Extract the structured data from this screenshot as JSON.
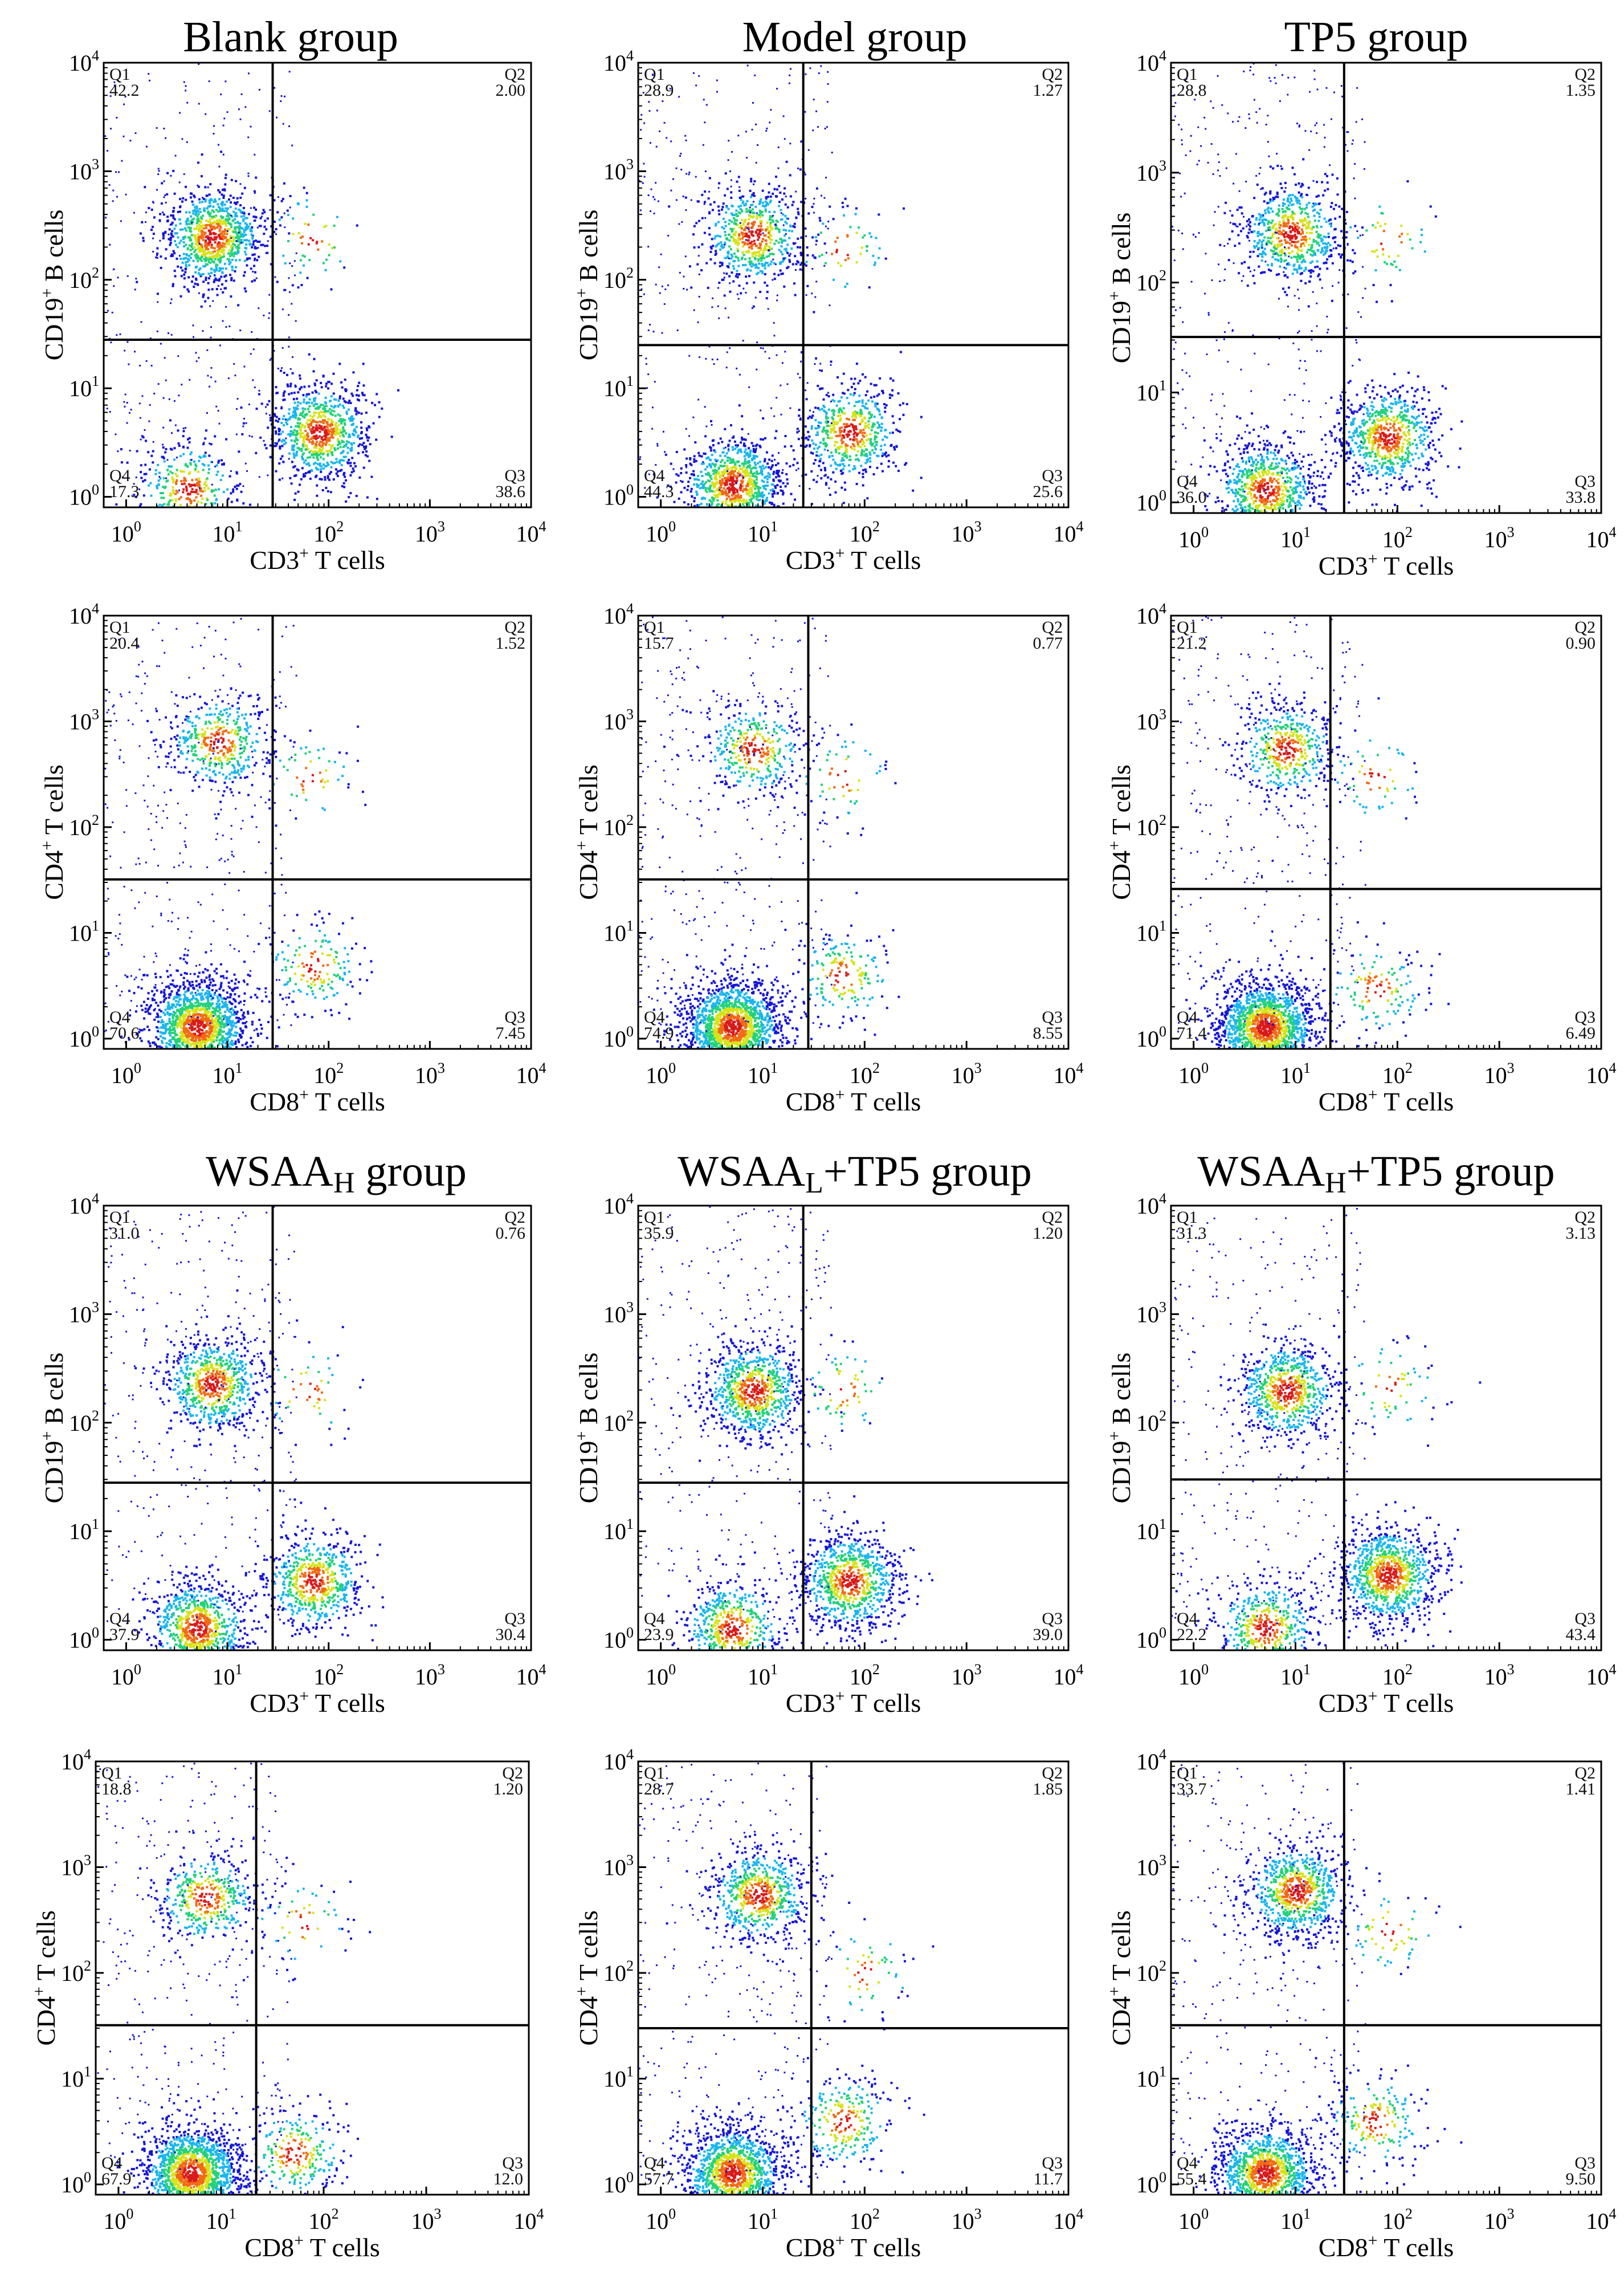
{
  "figure": {
    "titles": [
      {
        "name": "Blank",
        "suffix": " group",
        "sub": ""
      },
      {
        "name": "Model",
        "suffix": " group",
        "sub": ""
      },
      {
        "name": "TP5",
        "suffix": " group",
        "sub": ""
      },
      {
        "name": "WSAA",
        "sub": "H",
        "suffix": "  group"
      },
      {
        "name": "WSAA",
        "sub": "L",
        "suffix": "+TP5 group"
      },
      {
        "name": "WSAA",
        "sub": "H",
        "suffix": "+TP5 group"
      }
    ]
  },
  "axes": {
    "ticks": [
      {
        "base": "10",
        "exp": "0"
      },
      {
        "base": "10",
        "exp": "1"
      },
      {
        "base": "10",
        "exp": "2"
      },
      {
        "base": "10",
        "exp": "3"
      },
      {
        "base": "10",
        "exp": "4"
      }
    ],
    "x_cd3": {
      "pre": "CD3",
      "sup": "+",
      "post": " T cells"
    },
    "x_cd8": {
      "pre": "CD8",
      "sup": "+",
      "post": " T cells"
    },
    "y_cd19": {
      "pre": "CD19",
      "sup": "+",
      "post": " B cells"
    },
    "y_cd4": {
      "pre": "CD4",
      "sup": "+",
      "post": " T cells"
    }
  },
  "colors": {
    "density": [
      "#1515d8",
      "#19b6ee",
      "#22d27a",
      "#d6e317",
      "#f26a14",
      "#d81a1a"
    ],
    "gate_line": "#000000"
  },
  "chart_data": [
    {
      "type": "scatter",
      "title": "Blank group",
      "xlabel": "CD3+ T cells",
      "ylabel": "CD19+ B cells",
      "xlim": [
        0.6,
        10000
      ],
      "ylim": [
        0.8,
        10000
      ],
      "gate": {
        "x": 28,
        "y": 28
      },
      "quadrants": [
        {
          "label": "Q1",
          "value": "42.2"
        },
        {
          "label": "Q2",
          "value": "2.00"
        },
        {
          "label": "Q3",
          "value": "38.6"
        },
        {
          "label": "Q4",
          "value": "17.3"
        }
      ],
      "populations": [
        {
          "x": 7,
          "y": 250,
          "weight": 0.42
        },
        {
          "x": 80,
          "y": 4,
          "weight": 0.38
        },
        {
          "x": 4,
          "y": 1.2,
          "weight": 0.17
        },
        {
          "x": 70,
          "y": 250,
          "weight": 0.02
        }
      ]
    },
    {
      "type": "scatter",
      "title": "Model group",
      "xlabel": "CD3+ T cells",
      "ylabel": "CD19+ B cells",
      "xlim": [
        0.6,
        10000
      ],
      "ylim": [
        0.8,
        10000
      ],
      "gate": {
        "x": 25,
        "y": 25
      },
      "quadrants": [
        {
          "label": "Q1",
          "value": "28.9"
        },
        {
          "label": "Q2",
          "value": "1.27"
        },
        {
          "label": "Q3",
          "value": "25.6"
        },
        {
          "label": "Q4",
          "value": "44.3"
        }
      ],
      "populations": [
        {
          "x": 8,
          "y": 260,
          "weight": 0.29
        },
        {
          "x": 70,
          "y": 4,
          "weight": 0.26
        },
        {
          "x": 5,
          "y": 1.3,
          "weight": 0.44
        },
        {
          "x": 60,
          "y": 200,
          "weight": 0.013
        }
      ]
    },
    {
      "type": "scatter",
      "title": "TP5 group",
      "xlabel": "CD3+ T cells",
      "ylabel": "CD19+ B cells",
      "xlim": [
        0.6,
        10000
      ],
      "ylim": [
        0.8,
        10000
      ],
      "gate": {
        "x": 30,
        "y": 32
      },
      "quadrants": [
        {
          "label": "Q1",
          "value": "28.8"
        },
        {
          "label": "Q2",
          "value": "1.35"
        },
        {
          "label": "Q3",
          "value": "33.8"
        },
        {
          "label": "Q4",
          "value": "36.0"
        }
      ],
      "populations": [
        {
          "x": 9,
          "y": 280,
          "weight": 0.29
        },
        {
          "x": 80,
          "y": 4,
          "weight": 0.34
        },
        {
          "x": 5,
          "y": 1.3,
          "weight": 0.36
        },
        {
          "x": 80,
          "y": 250,
          "weight": 0.014
        }
      ]
    },
    {
      "type": "scatter",
      "title": "Blank group",
      "xlabel": "CD8+ T cells",
      "ylabel": "CD4+ T cells",
      "xlim": [
        0.6,
        10000
      ],
      "ylim": [
        0.8,
        10000
      ],
      "gate": {
        "x": 28,
        "y": 32
      },
      "quadrants": [
        {
          "label": "Q1",
          "value": "20.4"
        },
        {
          "label": "Q2",
          "value": "1.52"
        },
        {
          "label": "Q3",
          "value": "7.45"
        },
        {
          "label": "Q4",
          "value": "70.6"
        }
      ],
      "populations": [
        {
          "x": 8,
          "y": 650,
          "weight": 0.2
        },
        {
          "x": 70,
          "y": 5,
          "weight": 0.075
        },
        {
          "x": 5,
          "y": 1.3,
          "weight": 0.71
        },
        {
          "x": 60,
          "y": 300,
          "weight": 0.015
        }
      ]
    },
    {
      "type": "scatter",
      "title": "Model group",
      "xlabel": "CD8+ T cells",
      "ylabel": "CD4+ T cells",
      "xlim": [
        0.6,
        10000
      ],
      "ylim": [
        0.8,
        10000
      ],
      "gate": {
        "x": 28,
        "y": 32
      },
      "quadrants": [
        {
          "label": "Q1",
          "value": "15.7"
        },
        {
          "label": "Q2",
          "value": "0.77"
        },
        {
          "label": "Q3",
          "value": "8.55"
        },
        {
          "label": "Q4",
          "value": "74.9"
        }
      ],
      "populations": [
        {
          "x": 8,
          "y": 550,
          "weight": 0.16
        },
        {
          "x": 60,
          "y": 4,
          "weight": 0.085
        },
        {
          "x": 5,
          "y": 1.3,
          "weight": 0.75
        },
        {
          "x": 60,
          "y": 300,
          "weight": 0.008
        }
      ]
    },
    {
      "type": "scatter",
      "title": "TP5 group",
      "xlabel": "CD8+ T cells",
      "ylabel": "CD4+ T cells",
      "xlim": [
        0.6,
        10000
      ],
      "ylim": [
        0.8,
        10000
      ],
      "gate": {
        "x": 22,
        "y": 26
      },
      "quadrants": [
        {
          "label": "Q1",
          "value": "21.2"
        },
        {
          "label": "Q2",
          "value": "0.90"
        },
        {
          "label": "Q3",
          "value": "6.49"
        },
        {
          "label": "Q4",
          "value": "71.4"
        }
      ],
      "populations": [
        {
          "x": 8,
          "y": 550,
          "weight": 0.21
        },
        {
          "x": 60,
          "y": 3,
          "weight": 0.065
        },
        {
          "x": 5,
          "y": 1.3,
          "weight": 0.71
        },
        {
          "x": 60,
          "y": 300,
          "weight": 0.009
        }
      ]
    },
    {
      "type": "scatter",
      "title": "WSAAH group",
      "xlabel": "CD3+ T cells",
      "ylabel": "CD19+ B cells",
      "xlim": [
        0.6,
        10000
      ],
      "ylim": [
        0.8,
        10000
      ],
      "gate": {
        "x": 28,
        "y": 28
      },
      "quadrants": [
        {
          "label": "Q1",
          "value": "31.0"
        },
        {
          "label": "Q2",
          "value": "0.76"
        },
        {
          "label": "Q3",
          "value": "30.4"
        },
        {
          "label": "Q4",
          "value": "37.9"
        }
      ],
      "populations": [
        {
          "x": 7,
          "y": 230,
          "weight": 0.31
        },
        {
          "x": 70,
          "y": 3.5,
          "weight": 0.3
        },
        {
          "x": 5,
          "y": 1.3,
          "weight": 0.38
        },
        {
          "x": 60,
          "y": 200,
          "weight": 0.008
        }
      ]
    },
    {
      "type": "scatter",
      "title": "WSAAL+TP5 group",
      "xlabel": "CD3+ T cells",
      "ylabel": "CD19+ B cells",
      "xlim": [
        0.6,
        10000
      ],
      "ylim": [
        0.8,
        10000
      ],
      "gate": {
        "x": 25,
        "y": 28
      },
      "quadrants": [
        {
          "label": "Q1",
          "value": "35.9"
        },
        {
          "label": "Q2",
          "value": "1.20"
        },
        {
          "label": "Q3",
          "value": "39.0"
        },
        {
          "label": "Q4",
          "value": "23.9"
        }
      ],
      "populations": [
        {
          "x": 8,
          "y": 200,
          "weight": 0.36
        },
        {
          "x": 70,
          "y": 3.5,
          "weight": 0.39
        },
        {
          "x": 5,
          "y": 1.3,
          "weight": 0.24
        },
        {
          "x": 60,
          "y": 200,
          "weight": 0.012
        }
      ]
    },
    {
      "type": "scatter",
      "title": "WSAAH+TP5 group",
      "xlabel": "CD3+ T cells",
      "ylabel": "CD19+ B cells",
      "xlim": [
        0.6,
        10000
      ],
      "ylim": [
        0.8,
        10000
      ],
      "gate": {
        "x": 30,
        "y": 30
      },
      "quadrants": [
        {
          "label": "Q1",
          "value": "31.3"
        },
        {
          "label": "Q2",
          "value": "3.13"
        },
        {
          "label": "Q3",
          "value": "43.4"
        },
        {
          "label": "Q4",
          "value": "22.2"
        }
      ],
      "populations": [
        {
          "x": 8,
          "y": 200,
          "weight": 0.31
        },
        {
          "x": 80,
          "y": 4,
          "weight": 0.43
        },
        {
          "x": 5,
          "y": 1.3,
          "weight": 0.22
        },
        {
          "x": 80,
          "y": 220,
          "weight": 0.031
        }
      ]
    },
    {
      "type": "scatter",
      "title": "WSAAH group",
      "xlabel": "CD8+ T cells",
      "ylabel": "CD4+ T cells",
      "xlim": [
        0.6,
        10000
      ],
      "ylim": [
        0.8,
        10000
      ],
      "gate": {
        "x": 22,
        "y": 32
      },
      "quadrants": [
        {
          "label": "Q1",
          "value": "18.8"
        },
        {
          "label": "Q2",
          "value": "1.20"
        },
        {
          "label": "Q3",
          "value": "12.0"
        },
        {
          "label": "Q4",
          "value": "67.9"
        }
      ],
      "populations": [
        {
          "x": 7,
          "y": 520,
          "weight": 0.19
        },
        {
          "x": 50,
          "y": 2,
          "weight": 0.12
        },
        {
          "x": 5,
          "y": 1.3,
          "weight": 0.68
        },
        {
          "x": 60,
          "y": 300,
          "weight": 0.012
        }
      ]
    },
    {
      "type": "scatter",
      "title": "WSAAL+TP5 group",
      "xlabel": "CD8+ T cells",
      "ylabel": "CD4+ T cells",
      "xlim": [
        0.6,
        10000
      ],
      "ylim": [
        0.8,
        10000
      ],
      "gate": {
        "x": 30,
        "y": 30
      },
      "quadrants": [
        {
          "label": "Q1",
          "value": "28.7"
        },
        {
          "label": "Q2",
          "value": "1.85"
        },
        {
          "label": "Q3",
          "value": "11.7"
        },
        {
          "label": "Q4",
          "value": "57.7"
        }
      ],
      "populations": [
        {
          "x": 9,
          "y": 550,
          "weight": 0.29
        },
        {
          "x": 60,
          "y": 4,
          "weight": 0.12
        },
        {
          "x": 5,
          "y": 1.3,
          "weight": 0.58
        },
        {
          "x": 100,
          "y": 100,
          "weight": 0.019
        }
      ]
    },
    {
      "type": "scatter",
      "title": "WSAAH+TP5 group",
      "xlabel": "CD8+ T cells",
      "ylabel": "CD4+ T cells",
      "xlim": [
        0.6,
        10000
      ],
      "ylim": [
        0.8,
        10000
      ],
      "gate": {
        "x": 30,
        "y": 32
      },
      "quadrants": [
        {
          "label": "Q1",
          "value": "33.7"
        },
        {
          "label": "Q2",
          "value": "1.41"
        },
        {
          "label": "Q3",
          "value": "9.50"
        },
        {
          "label": "Q4",
          "value": "55.4"
        }
      ],
      "populations": [
        {
          "x": 10,
          "y": 600,
          "weight": 0.34
        },
        {
          "x": 60,
          "y": 4,
          "weight": 0.095
        },
        {
          "x": 5,
          "y": 1.3,
          "weight": 0.55
        },
        {
          "x": 80,
          "y": 250,
          "weight": 0.014
        }
      ]
    }
  ]
}
